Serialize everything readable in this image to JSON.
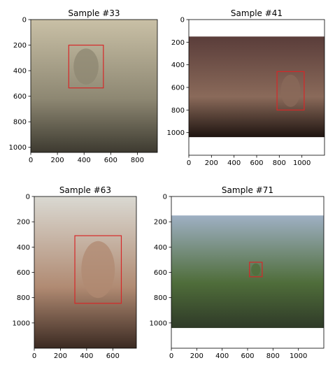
{
  "chart_data": [
    {
      "type": "image-grid",
      "title": "Sample #33",
      "image_size": [
        950,
        1040
      ],
      "xlim": [
        0,
        950
      ],
      "ylim": [
        1040,
        0
      ],
      "xticks": [
        0,
        200,
        400,
        600,
        800
      ],
      "yticks": [
        0,
        200,
        400,
        600,
        800,
        1000
      ],
      "bbox": {
        "x1": 285,
        "y1": 200,
        "x2": 545,
        "y2": 535
      },
      "image_colors": {
        "bg": "#c9c0a6",
        "mid": "#8d8772",
        "dark": "#3d3a30"
      }
    },
    {
      "type": "image-grid",
      "title": "Sample #41",
      "image_size": [
        1200,
        1200
      ],
      "image_extent_y": [
        150,
        1040
      ],
      "xlim": [
        0,
        1200
      ],
      "ylim": [
        1200,
        0
      ],
      "xticks": [
        0,
        200,
        400,
        600,
        800,
        1000
      ],
      "yticks": [
        0,
        200,
        400,
        600,
        800,
        1000
      ],
      "bbox": {
        "x1": 780,
        "y1": 460,
        "x2": 1020,
        "y2": 800
      },
      "image_colors": {
        "bg": "#5a3d3a",
        "mid": "#8a6a5a",
        "dark": "#1e1410"
      }
    },
    {
      "type": "image-grid",
      "title": "Sample #63",
      "image_size": [
        780,
        1200
      ],
      "xlim": [
        0,
        780
      ],
      "ylim": [
        1200,
        0
      ],
      "xticks": [
        0,
        200,
        400,
        600
      ],
      "yticks": [
        0,
        200,
        400,
        600,
        800,
        1000
      ],
      "bbox": {
        "x1": 310,
        "y1": 310,
        "x2": 665,
        "y2": 845
      },
      "image_colors": {
        "bg": "#dad9d2",
        "mid": "#b08a72",
        "dark": "#3b2a22"
      }
    },
    {
      "type": "image-grid",
      "title": "Sample #71",
      "image_size": [
        1200,
        1200
      ],
      "image_extent_y": [
        150,
        1040
      ],
      "xlim": [
        0,
        1200
      ],
      "ylim": [
        1200,
        0
      ],
      "xticks": [
        0,
        200,
        400,
        600,
        800,
        1000
      ],
      "yticks": [
        0,
        200,
        400,
        600,
        800,
        1000
      ],
      "bbox": {
        "x1": 615,
        "y1": 520,
        "x2": 715,
        "y2": 635
      },
      "image_colors": {
        "bg": "#9fb0c4",
        "mid": "#4f6d3a",
        "dark": "#2f3a28"
      }
    }
  ]
}
